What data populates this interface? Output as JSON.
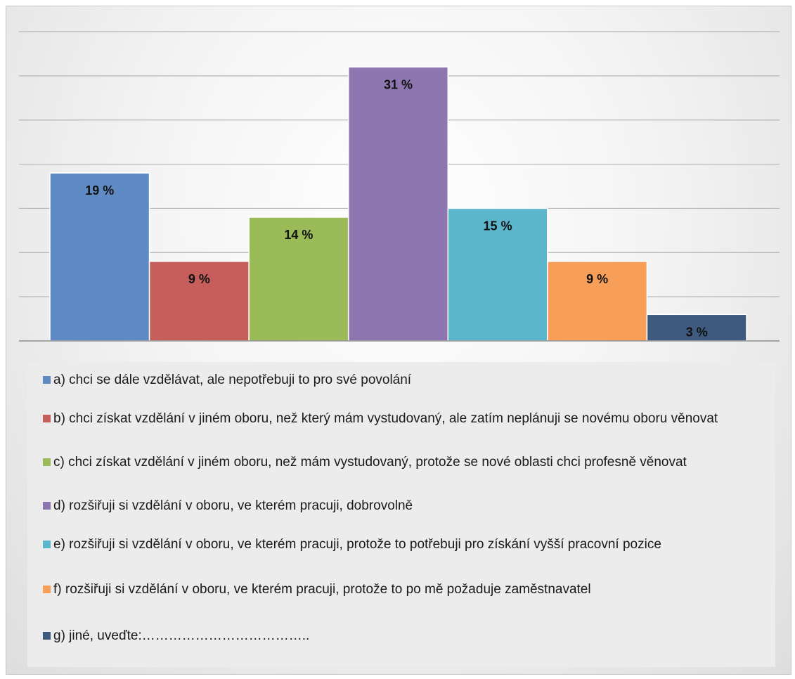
{
  "chart_data": {
    "type": "bar",
    "categories": [
      "a",
      "b",
      "c",
      "d",
      "e",
      "f",
      "g"
    ],
    "values": [
      19,
      9,
      14,
      31,
      15,
      9,
      3
    ],
    "value_labels": [
      "19 %",
      "9 %",
      "14 %",
      "31 %",
      "15 %",
      "9 %",
      "3 %"
    ],
    "colors": [
      "#5f8ac3",
      "#c65e5b",
      "#9bbb59",
      "#8e76b0",
      "#5cb6cc",
      "#f79f59",
      "#3e5a7f"
    ],
    "ylim": [
      0,
      35
    ],
    "grid": true,
    "gridline_step": 5,
    "legend_position": "bottom",
    "title": "",
    "xlabel": "",
    "ylabel": ""
  },
  "legend": {
    "items": [
      "a) chci se dále vzdělávat, ale nepotřebuji to pro své povolání",
      "b) chci získat vzdělání v jiném oboru, než který mám vystudovaný, ale zatím neplánuji se novému oboru věnovat",
      "c) chci získat vzdělání v jiném oboru, než mám vystudovaný, protože se nové oblasti chci profesně věnovat",
      "d) rozšiřuji si vzdělání v oboru, ve kterém pracuji, dobrovolně",
      "e) rozšiřuji si vzdělání v oboru, ve kterém pracuji, protože to potřebuji pro získání vyšší pracovní pozice",
      "f) rozšiřuji si vzdělání v oboru, ve kterém pracuji, protože to po mě požaduje zaměstnavatel",
      "g) jiné, uveďte:……………………………….."
    ]
  }
}
